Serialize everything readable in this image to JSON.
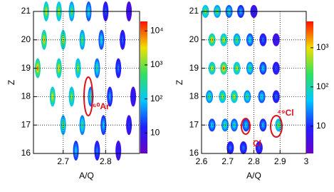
{
  "chart_data": [
    {
      "type": "heatmap",
      "x_label": "A/Q",
      "y_label": "Z",
      "xlim": [
        2.63,
        2.88
      ],
      "xticks": [
        2.7,
        2.8
      ],
      "ylim": [
        16,
        21
      ],
      "yticks": [
        16,
        17,
        18,
        19,
        20,
        21
      ],
      "zlim": [
        2.5,
        19000
      ],
      "zticks": [
        10,
        {
          "value": 100,
          "label": "10²"
        },
        {
          "value": 1000,
          "label": "10³"
        },
        {
          "value": 10000,
          "label": "10⁴"
        }
      ],
      "log_z": true,
      "grid": true,
      "points": {
        "x": [
          2.66,
          2.69,
          2.72,
          2.76,
          2.8,
          2.855,
          2.655,
          2.7,
          2.745,
          2.79,
          2.84,
          2.64,
          2.69,
          2.735,
          2.78,
          2.83,
          2.675,
          2.72,
          2.765,
          2.81,
          2.865,
          2.7,
          2.745,
          2.795,
          2.855,
          2.73,
          2.78,
          2.83
        ],
        "y": [
          21,
          21,
          21,
          21,
          21,
          21,
          20,
          20,
          20,
          20,
          20,
          19,
          19,
          19,
          19,
          19,
          18,
          18,
          18,
          18,
          18,
          17,
          17,
          17,
          17,
          16.1,
          16.1,
          16.1
        ],
        "values": [
          3000,
          2000,
          800,
          200,
          30,
          10,
          5000,
          3000,
          800,
          150,
          30,
          8000,
          4000,
          1500,
          300,
          40,
          3000,
          1500,
          300,
          60,
          15,
          800,
          400,
          100,
          20,
          100,
          40,
          15
        ]
      },
      "annotations": [
        "⁶⁰Ar"
      ]
    },
    {
      "type": "heatmap",
      "x_label": "A/Q",
      "y_label": "Z",
      "xlim": [
        2.6,
        3
      ],
      "xticks": [
        2.6,
        2.7,
        2.8,
        2.9,
        3
      ],
      "ylim": [
        16,
        21
      ],
      "yticks": [
        16,
        17,
        18,
        19,
        20,
        21
      ],
      "zlim": [
        2,
        4700
      ],
      "zticks": [
        10,
        {
          "value": 100,
          "label": "10²"
        },
        {
          "value": 1000,
          "label": "10³"
        }
      ],
      "log_z": true,
      "grid": true,
      "points": {
        "x": [
          2.615,
          2.66,
          2.705,
          2.75,
          2.8,
          2.64,
          2.685,
          2.735,
          2.785,
          2.835,
          2.885,
          2.64,
          2.685,
          2.735,
          2.785,
          2.835,
          2.885,
          2.63,
          2.68,
          2.725,
          2.775,
          2.83,
          2.885,
          2.64,
          2.69,
          2.725,
          2.77,
          2.835,
          2.895,
          2.71,
          2.76,
          2.82
        ],
        "y": [
          21,
          21,
          21,
          21,
          21,
          20,
          20,
          20,
          20,
          20,
          20,
          19,
          19,
          19,
          19,
          19,
          19,
          18,
          18,
          18,
          18,
          18,
          18,
          17,
          17,
          17,
          17,
          17,
          17,
          16.2,
          16.2,
          16.2
        ],
        "values": [
          500,
          300,
          100,
          40,
          10,
          1500,
          800,
          300,
          80,
          20,
          8,
          800,
          2500,
          700,
          200,
          50,
          15,
          200,
          500,
          700,
          200,
          80,
          20,
          60,
          150,
          100,
          60,
          40,
          400,
          20,
          20,
          15
        ]
      },
      "annotations": [
        "Cl",
        "⁴⁹Cl"
      ]
    }
  ]
}
